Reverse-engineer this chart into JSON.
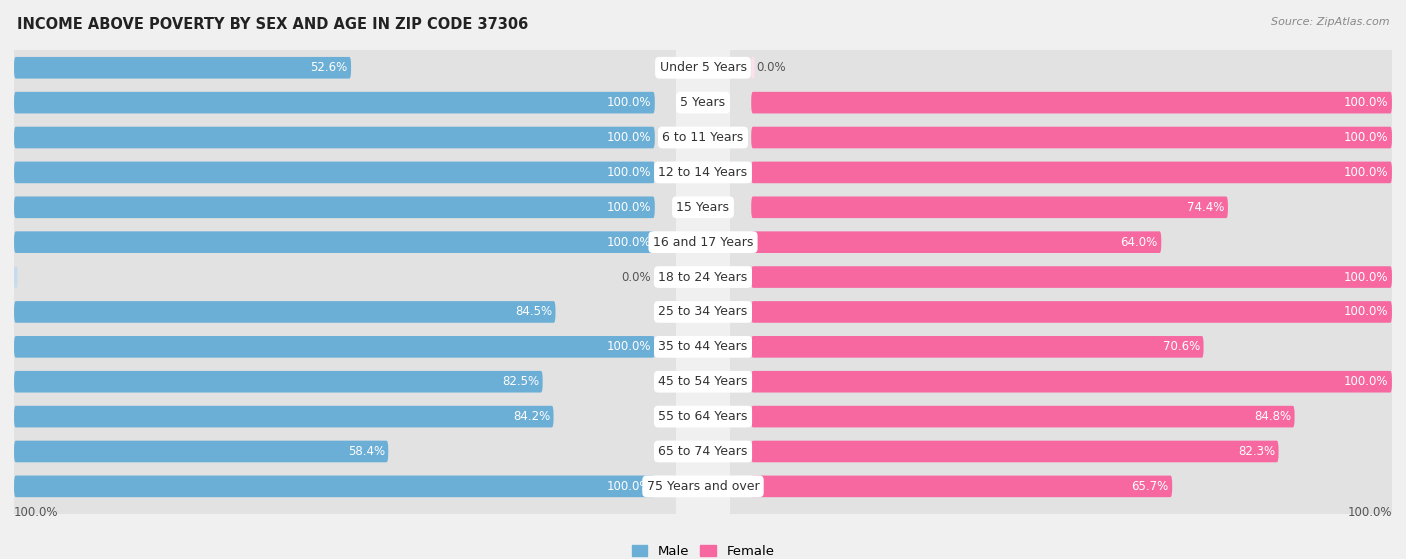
{
  "title": "INCOME ABOVE POVERTY BY SEX AND AGE IN ZIP CODE 37306",
  "source": "Source: ZipAtlas.com",
  "categories": [
    "Under 5 Years",
    "5 Years",
    "6 to 11 Years",
    "12 to 14 Years",
    "15 Years",
    "16 and 17 Years",
    "18 to 24 Years",
    "25 to 34 Years",
    "35 to 44 Years",
    "45 to 54 Years",
    "55 to 64 Years",
    "65 to 74 Years",
    "75 Years and over"
  ],
  "male": [
    52.6,
    100.0,
    100.0,
    100.0,
    100.0,
    100.0,
    0.0,
    84.5,
    100.0,
    82.5,
    84.2,
    58.4,
    100.0
  ],
  "female": [
    0.0,
    100.0,
    100.0,
    100.0,
    74.4,
    64.0,
    100.0,
    100.0,
    70.6,
    100.0,
    84.8,
    82.3,
    65.7
  ],
  "male_color": "#6baed6",
  "female_color": "#f768a1",
  "male_color_light": "#c6dcee",
  "female_color_light": "#fce0ec",
  "bg_color": "#f0f0f0",
  "row_bg_color": "#e2e2e2",
  "label_bg_color": "#ffffff",
  "title_fontsize": 10.5,
  "label_fontsize": 8.5,
  "cat_fontsize": 9,
  "axis_label_fontsize": 8.5
}
